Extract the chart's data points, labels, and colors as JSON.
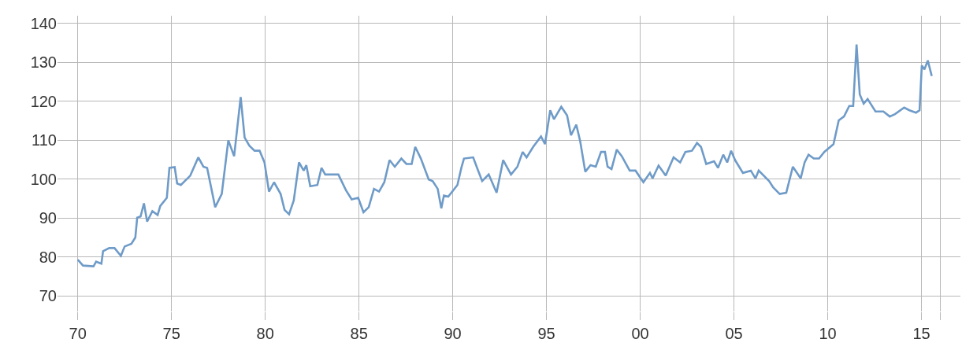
{
  "chart_data": {
    "type": "line",
    "x": [
      1970.0,
      1970.28,
      1970.84,
      1970.98,
      1971.26,
      1971.35,
      1971.68,
      1971.96,
      1972.3,
      1972.5,
      1972.86,
      1973.07,
      1973.17,
      1973.35,
      1973.53,
      1973.7,
      1973.98,
      1974.26,
      1974.4,
      1974.75,
      1974.89,
      1975.17,
      1975.3,
      1975.5,
      1976.0,
      1976.43,
      1976.7,
      1976.9,
      1977.33,
      1977.68,
      1978.03,
      1978.34,
      1978.69,
      1978.9,
      1979.15,
      1979.43,
      1979.7,
      1979.96,
      1980.2,
      1980.47,
      1980.82,
      1981.03,
      1981.27,
      1981.52,
      1981.8,
      1982.05,
      1982.19,
      1982.4,
      1982.78,
      1983.0,
      1983.2,
      1983.9,
      1984.3,
      1984.61,
      1984.96,
      1985.24,
      1985.52,
      1985.8,
      1986.07,
      1986.35,
      1986.63,
      1986.91,
      1987.26,
      1987.53,
      1987.81,
      1988.0,
      1988.3,
      1988.72,
      1988.93,
      1989.2,
      1989.39,
      1989.53,
      1989.76,
      1990.25,
      1990.46,
      1990.6,
      1991.09,
      1991.3,
      1991.57,
      1991.92,
      1992.34,
      1992.69,
      1993.11,
      1993.45,
      1993.73,
      1993.94,
      1994.29,
      1994.71,
      1994.92,
      1995.2,
      1995.4,
      1995.79,
      1996.1,
      1996.31,
      1996.59,
      1996.8,
      1997.07,
      1997.35,
      1997.63,
      1997.91,
      1998.12,
      1998.26,
      1998.47,
      1998.75,
      1999.02,
      1999.44,
      1999.75,
      2000.17,
      2000.52,
      2000.66,
      2000.98,
      2001.36,
      2001.78,
      2002.13,
      2002.41,
      2002.76,
      2003.03,
      2003.24,
      2003.52,
      2003.94,
      2004.15,
      2004.43,
      2004.64,
      2004.85,
      2005.06,
      2005.48,
      2005.9,
      2006.15,
      2006.32,
      2006.88,
      2007.09,
      2007.44,
      2007.79,
      2008.14,
      2008.56,
      2008.77,
      2008.98,
      2009.26,
      2009.54,
      2009.82,
      2010.31,
      2010.59,
      2010.87,
      2011.15,
      2011.36,
      2011.54,
      2011.71,
      2011.92,
      2012.13,
      2012.55,
      2012.97,
      2013.31,
      2013.59,
      2014.08,
      2014.36,
      2014.71,
      2014.9,
      2015.02,
      2015.16,
      2015.34,
      2015.55
    ],
    "series": [
      {
        "color": "#6f9bc8",
        "values": [
          79.3,
          77.8,
          77.6,
          78.8,
          78.3,
          81.5,
          82.3,
          82.3,
          80.3,
          82.7,
          83.4,
          85.0,
          90.1,
          90.4,
          93.8,
          89.1,
          91.8,
          90.8,
          93.1,
          95.2,
          102.9,
          103.1,
          98.9,
          98.5,
          100.9,
          105.6,
          103.2,
          102.9,
          92.8,
          96.2,
          110.0,
          105.9,
          121.1,
          110.7,
          108.6,
          107.3,
          107.3,
          104.3,
          96.8,
          99.2,
          96.2,
          92.1,
          91.0,
          94.5,
          104.3,
          102.2,
          103.6,
          98.2,
          98.5,
          102.9,
          101.2,
          101.2,
          97.2,
          94.8,
          95.2,
          91.5,
          92.8,
          97.5,
          96.8,
          99.2,
          104.9,
          103.2,
          105.3,
          103.9,
          103.9,
          108.3,
          105.3,
          99.9,
          99.5,
          97.5,
          92.5,
          95.8,
          95.5,
          98.5,
          102.9,
          105.3,
          105.6,
          102.9,
          99.5,
          101.2,
          96.5,
          104.9,
          101.2,
          103.2,
          107.0,
          105.6,
          108.3,
          111.0,
          109.0,
          117.7,
          115.4,
          118.6,
          116.4,
          111.3,
          114.0,
          109.7,
          101.9,
          103.6,
          103.2,
          107.0,
          107.0,
          103.2,
          102.6,
          107.6,
          105.9,
          102.2,
          102.2,
          99.2,
          101.6,
          100.2,
          103.5,
          100.9,
          105.6,
          104.3,
          107.0,
          107.3,
          109.3,
          108.3,
          103.9,
          104.6,
          102.9,
          106.3,
          104.3,
          107.3,
          104.9,
          101.6,
          102.2,
          100.2,
          102.2,
          99.5,
          97.9,
          96.2,
          96.5,
          103.2,
          100.2,
          104.3,
          106.3,
          105.3,
          105.3,
          107.0,
          109.0,
          115.1,
          116.1,
          118.8,
          118.8,
          134.6,
          121.8,
          119.4,
          120.6,
          117.4,
          117.4,
          116.1,
          116.7,
          118.4,
          117.7,
          117.1,
          117.7,
          129.2,
          128.2,
          130.5,
          126.5
        ]
      }
    ],
    "xlim": [
      1968.92,
      2017.08
    ],
    "xticks": [
      {
        "value": 1970,
        "label": "70"
      },
      {
        "value": 1975,
        "label": "75"
      },
      {
        "value": 1980,
        "label": "80"
      },
      {
        "value": 1985,
        "label": "85"
      },
      {
        "value": 1990,
        "label": "90"
      },
      {
        "value": 1995,
        "label": "95"
      },
      {
        "value": 2000,
        "label": "00"
      },
      {
        "value": 2005,
        "label": "05"
      },
      {
        "value": 2010,
        "label": "10"
      },
      {
        "value": 2015,
        "label": "15"
      },
      {
        "value": 2016,
        "label": null
      }
    ],
    "ylim": [
      66,
      142
    ],
    "yticks": [
      70,
      80,
      90,
      100,
      110,
      120,
      130,
      140
    ],
    "grid": true,
    "legend": false,
    "marker": "none",
    "line_style": "solid"
  }
}
